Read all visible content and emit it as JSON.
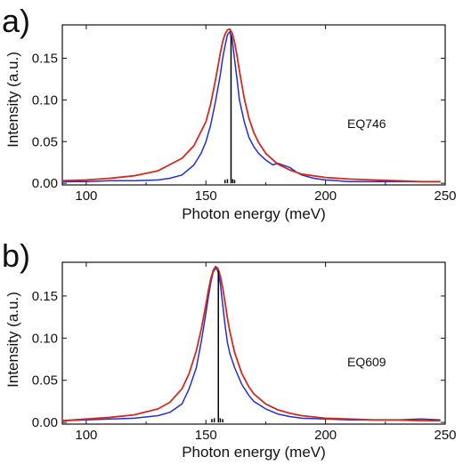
{
  "chart_data": [
    {
      "type": "line",
      "panel_label": "a)",
      "sample_label": "EQ746",
      "xlabel": "Photon energy (meV)",
      "ylabel": "Intensity (a.u.)",
      "xlim": [
        90,
        250
      ],
      "ylim": [
        -0.002,
        0.19
      ],
      "xticks": [
        100,
        150,
        200,
        250
      ],
      "xtick_labels": [
        "100",
        "150",
        "200",
        "250"
      ],
      "yticks": [
        0.0,
        0.05,
        0.1,
        0.15
      ],
      "ytick_labels": [
        "0.00",
        "0.05",
        "0.10",
        "0.15"
      ],
      "grid": false,
      "series": [
        {
          "color": "#1f2fd6",
          "x": [
            90,
            100,
            110,
            120,
            130,
            135,
            140,
            145,
            148,
            150,
            152,
            154,
            156,
            157,
            158,
            159,
            160,
            161,
            162,
            163,
            164,
            166,
            168,
            170,
            172,
            175,
            178,
            180,
            183,
            185,
            188,
            190,
            195,
            200,
            205,
            210,
            220,
            230,
            240,
            248
          ],
          "y": [
            0.002,
            0.002,
            0.003,
            0.003,
            0.004,
            0.006,
            0.01,
            0.022,
            0.036,
            0.05,
            0.07,
            0.098,
            0.13,
            0.15,
            0.165,
            0.178,
            0.182,
            0.172,
            0.148,
            0.125,
            0.1,
            0.074,
            0.055,
            0.044,
            0.036,
            0.028,
            0.022,
            0.024,
            0.021,
            0.019,
            0.013,
            0.01,
            0.006,
            0.004,
            0.003,
            0.002,
            0.002,
            0.002,
            0.002,
            0.002
          ]
        },
        {
          "color": "#d42a1e",
          "x": [
            90,
            100,
            110,
            120,
            130,
            140,
            145,
            150,
            152,
            154,
            156,
            157,
            158,
            159,
            160,
            161,
            162,
            163,
            164,
            166,
            168,
            170,
            172,
            175,
            180,
            185,
            190,
            200,
            210,
            220,
            230,
            240,
            248
          ],
          "y": [
            0.003,
            0.004,
            0.006,
            0.009,
            0.015,
            0.03,
            0.045,
            0.074,
            0.095,
            0.124,
            0.156,
            0.17,
            0.179,
            0.184,
            0.185,
            0.18,
            0.169,
            0.153,
            0.135,
            0.102,
            0.078,
            0.061,
            0.049,
            0.036,
            0.023,
            0.016,
            0.011,
            0.007,
            0.005,
            0.004,
            0.003,
            0.002,
            0.002
          ]
        }
      ],
      "sticks": {
        "color": "#000000",
        "x": [
          158,
          159,
          160.5,
          161.2,
          162
        ],
        "y": [
          0.004,
          0.005,
          0.178,
          0.005,
          0.004
        ]
      }
    },
    {
      "type": "line",
      "panel_label": "b)",
      "sample_label": "EQ609",
      "xlabel": "Photon energy (meV)",
      "ylabel": "Intensity (a.u.)",
      "xlim": [
        90,
        250
      ],
      "ylim": [
        -0.002,
        0.19
      ],
      "xticks": [
        100,
        150,
        200,
        250
      ],
      "xtick_labels": [
        "100",
        "150",
        "200",
        "250"
      ],
      "yticks": [
        0.0,
        0.05,
        0.1,
        0.15
      ],
      "ytick_labels": [
        "0.00",
        "0.05",
        "0.10",
        "0.15"
      ],
      "grid": false,
      "series": [
        {
          "color": "#1f2fd6",
          "x": [
            90,
            100,
            110,
            120,
            130,
            135,
            140,
            143,
            146,
            148,
            150,
            151,
            152,
            153,
            154,
            155,
            156,
            157,
            158,
            159,
            160,
            162,
            165,
            168,
            170,
            175,
            180,
            185,
            190,
            200,
            210,
            220,
            230,
            240,
            248
          ],
          "y": [
            0.002,
            0.003,
            0.004,
            0.005,
            0.008,
            0.012,
            0.022,
            0.04,
            0.065,
            0.095,
            0.13,
            0.148,
            0.165,
            0.178,
            0.183,
            0.18,
            0.165,
            0.14,
            0.115,
            0.095,
            0.082,
            0.065,
            0.045,
            0.032,
            0.025,
            0.016,
            0.01,
            0.007,
            0.005,
            0.004,
            0.003,
            0.003,
            0.003,
            0.004,
            0.003
          ]
        },
        {
          "color": "#d42a1e",
          "x": [
            90,
            100,
            110,
            120,
            130,
            135,
            140,
            143,
            146,
            148,
            150,
            151,
            152,
            153,
            154,
            155,
            156,
            157,
            158,
            159,
            160,
            162,
            165,
            168,
            170,
            175,
            180,
            185,
            190,
            200,
            210,
            220,
            230,
            240,
            248
          ],
          "y": [
            0.002,
            0.004,
            0.006,
            0.009,
            0.016,
            0.024,
            0.04,
            0.058,
            0.085,
            0.11,
            0.14,
            0.156,
            0.17,
            0.18,
            0.185,
            0.183,
            0.174,
            0.16,
            0.142,
            0.124,
            0.108,
            0.083,
            0.058,
            0.042,
            0.034,
            0.022,
            0.015,
            0.011,
            0.008,
            0.005,
            0.004,
            0.003,
            0.003,
            0.002,
            0.002
          ]
        }
      ],
      "sticks": {
        "color": "#000000",
        "x": [
          152.5,
          153.5,
          155.2,
          156,
          157
        ],
        "y": [
          0.004,
          0.005,
          0.18,
          0.005,
          0.004
        ]
      }
    }
  ]
}
